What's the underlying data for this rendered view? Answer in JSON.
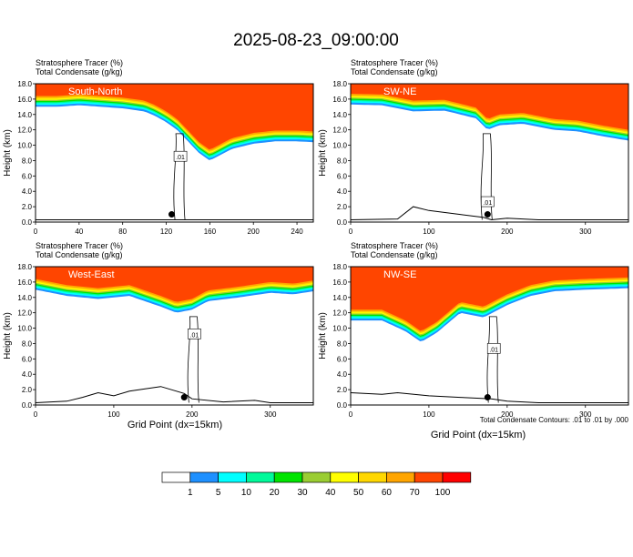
{
  "figure": {
    "title": "2025-08-23_09:00:00",
    "field_label": "Stratosphere Tracer",
    "field_unit": "(%)",
    "contour_label": "Total Condensate",
    "contour_unit": "(g/kg)",
    "xlabel": "Grid Point (dx=15km)",
    "ylabel": "Height (km)",
    "contour_note": "Total Condensate Contours: .01 to .01 by .000",
    "contour_value_label": ".01"
  },
  "colorbar": {
    "levels": [
      "1",
      "5",
      "10",
      "20",
      "30",
      "40",
      "50",
      "60",
      "70",
      "100"
    ],
    "colors": [
      "#ffffff",
      "#1e90ff",
      "#00ffff",
      "#00fa9a",
      "#00e400",
      "#9acd32",
      "#ffff00",
      "#ffd700",
      "#ffa500",
      "#ff4500",
      "#ff0000"
    ]
  },
  "chart_data": [
    {
      "type": "heatmap",
      "panel": "South-North",
      "x_ticks": [
        0,
        40,
        80,
        120,
        160,
        200,
        240
      ],
      "y_ticks": [
        "0.0",
        "2.0",
        "4.0",
        "6.0",
        "8.0",
        "10.0",
        "12.0",
        "14.0",
        "16.0",
        "18.0"
      ],
      "xlim": [
        0,
        255
      ],
      "ylim": [
        0,
        18
      ],
      "tracer_base_km": {
        "x": [
          0,
          20,
          40,
          60,
          80,
          100,
          110,
          120,
          130,
          140,
          150,
          160,
          180,
          200,
          220,
          240,
          255
        ],
        "y": [
          15.0,
          15.0,
          15.2,
          15.0,
          14.8,
          14.4,
          13.8,
          13.0,
          12.0,
          10.5,
          9.0,
          8.0,
          9.5,
          10.2,
          10.5,
          10.5,
          10.4
        ]
      },
      "terrain_km": {
        "x": [
          0,
          40,
          80,
          120,
          130,
          140,
          160,
          200,
          240,
          255
        ],
        "y": [
          0.3,
          0.3,
          0.3,
          0.3,
          0.3,
          0.3,
          0.3,
          0.3,
          0.3,
          0.3
        ]
      },
      "contour_label_at": {
        "x": 133,
        "y": 8.5
      },
      "marker": {
        "x": 125,
        "y": 1.0
      }
    },
    {
      "type": "heatmap",
      "panel": "SW-NE",
      "x_ticks": [
        0,
        100,
        200,
        300
      ],
      "y_ticks": [
        "0.0",
        "2.0",
        "4.0",
        "6.0",
        "8.0",
        "10.0",
        "12.0",
        "14.0",
        "16.0",
        "18.0"
      ],
      "xlim": [
        0,
        355
      ],
      "ylim": [
        0,
        18
      ],
      "tracer_base_km": {
        "x": [
          0,
          40,
          80,
          120,
          160,
          175,
          190,
          220,
          260,
          290,
          320,
          355
        ],
        "y": [
          15.3,
          15.2,
          14.4,
          14.5,
          13.5,
          12.0,
          12.6,
          12.8,
          12.0,
          11.8,
          11.2,
          10.6
        ]
      },
      "terrain_km": {
        "x": [
          0,
          60,
          80,
          100,
          140,
          170,
          180,
          200,
          240,
          300,
          355
        ],
        "y": [
          0.3,
          0.4,
          2.0,
          1.5,
          1.0,
          0.6,
          0.3,
          0.5,
          0.3,
          0.3,
          0.3
        ]
      },
      "contour_label_at": {
        "x": 175,
        "y": 2.6
      },
      "marker": {
        "x": 175,
        "y": 1.0
      }
    },
    {
      "type": "heatmap",
      "panel": "West-East",
      "x_ticks": [
        0,
        100,
        200,
        300
      ],
      "y_ticks": [
        "0.0",
        "2.0",
        "4.0",
        "6.0",
        "8.0",
        "10.0",
        "12.0",
        "14.0",
        "16.0",
        "18.0"
      ],
      "xlim": [
        0,
        355
      ],
      "ylim": [
        0,
        18
      ],
      "tracer_base_km": {
        "x": [
          0,
          40,
          80,
          120,
          160,
          180,
          200,
          220,
          260,
          300,
          330,
          355
        ],
        "y": [
          15.0,
          14.2,
          13.8,
          14.2,
          12.8,
          12.0,
          12.4,
          13.5,
          14.0,
          14.6,
          14.4,
          14.8
        ]
      },
      "terrain_km": {
        "x": [
          0,
          40,
          60,
          80,
          100,
          120,
          160,
          190,
          200,
          240,
          280,
          300,
          355
        ],
        "y": [
          0.3,
          0.5,
          1.0,
          1.6,
          1.2,
          1.8,
          2.4,
          1.5,
          0.8,
          0.4,
          0.6,
          0.3,
          0.3
        ]
      },
      "contour_label_at": {
        "x": 203,
        "y": 9.2
      },
      "marker": {
        "x": 190,
        "y": 1.0
      }
    },
    {
      "type": "heatmap",
      "panel": "NW-SE",
      "x_ticks": [
        0,
        100,
        200,
        300
      ],
      "y_ticks": [
        "0.0",
        "2.0",
        "4.0",
        "6.0",
        "8.0",
        "10.0",
        "12.0",
        "14.0",
        "16.0",
        "18.0"
      ],
      "xlim": [
        0,
        355
      ],
      "ylim": [
        0,
        18
      ],
      "tracer_base_km": {
        "x": [
          0,
          40,
          70,
          90,
          110,
          140,
          170,
          200,
          230,
          260,
          300,
          355
        ],
        "y": [
          11.0,
          11.0,
          9.6,
          8.2,
          9.4,
          12.0,
          11.4,
          13.0,
          14.2,
          14.8,
          15.0,
          15.2
        ]
      },
      "terrain_km": {
        "x": [
          0,
          40,
          60,
          100,
          140,
          180,
          200,
          240,
          300,
          355
        ],
        "y": [
          1.6,
          1.4,
          1.6,
          1.2,
          1.0,
          0.8,
          0.5,
          0.3,
          0.3,
          0.3
        ]
      },
      "contour_label_at": {
        "x": 183,
        "y": 7.3
      },
      "marker": {
        "x": 175,
        "y": 1.0
      }
    }
  ]
}
